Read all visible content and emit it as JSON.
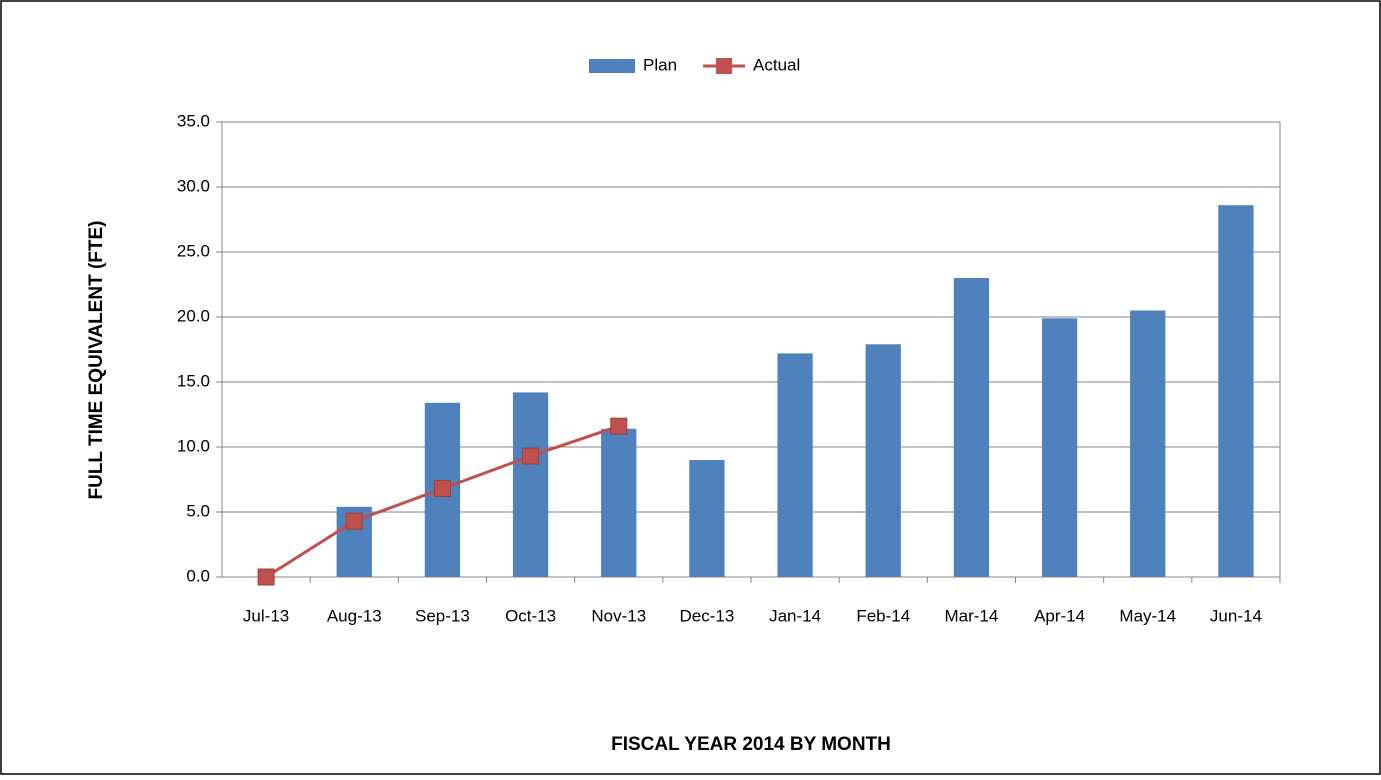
{
  "chart_data": {
    "type": "bar",
    "x_label": "FISCAL YEAR 2014 BY MONTH",
    "y_label": "FULL TIME EQUIVALENT (FTE)",
    "categories": [
      "Jul-13",
      "Aug-13",
      "Sep-13",
      "Oct-13",
      "Nov-13",
      "Dec-13",
      "Jan-14",
      "Feb-14",
      "Mar-14",
      "Apr-14",
      "May-14",
      "Jun-14"
    ],
    "series": [
      {
        "name": "Plan",
        "type": "bar",
        "color": "#4f81bd",
        "values": [
          0,
          5.4,
          13.4,
          14.2,
          11.4,
          9.0,
          17.2,
          17.9,
          23.0,
          19.9,
          20.5,
          28.6
        ]
      },
      {
        "name": "Actual",
        "type": "line",
        "color": "#c0504d",
        "values": [
          0,
          4.3,
          6.8,
          9.3,
          11.6,
          null,
          null,
          null,
          null,
          null,
          null,
          null
        ]
      }
    ],
    "ylim": [
      0,
      35
    ],
    "yticks": [
      {
        "value": 0,
        "label": "0.0"
      },
      {
        "value": 5,
        "label": "5.0"
      },
      {
        "value": 10,
        "label": "10.0"
      },
      {
        "value": 15,
        "label": "15.0"
      },
      {
        "value": 20,
        "label": "20.0"
      },
      {
        "value": 25,
        "label": "25.0"
      },
      {
        "value": 30,
        "label": "30.0"
      },
      {
        "value": 35,
        "label": "35.0"
      }
    ],
    "grid": true,
    "legend": "top"
  }
}
